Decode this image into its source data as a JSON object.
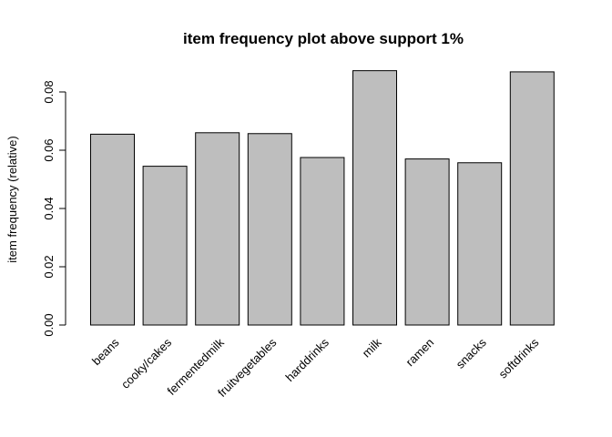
{
  "chart_data": {
    "type": "bar",
    "title": "item frequency plot above support 1%",
    "xlabel": "",
    "ylabel": "item frequency (relative)",
    "categories": [
      "beans",
      "cooky/cakes",
      "fermentedmilk",
      "fruitvegetables",
      "harddrinks",
      "milk",
      "ramen",
      "snacks",
      "softdrinks"
    ],
    "values": [
      0.0655,
      0.0545,
      0.066,
      0.0657,
      0.0575,
      0.0873,
      0.057,
      0.0557,
      0.0869
    ],
    "ylim": [
      0,
      0.09
    ],
    "yticks": [
      "0.00",
      "0.02",
      "0.04",
      "0.06",
      "0.08"
    ],
    "bar_color": "#bebebe",
    "grid": false,
    "legend": "none"
  }
}
